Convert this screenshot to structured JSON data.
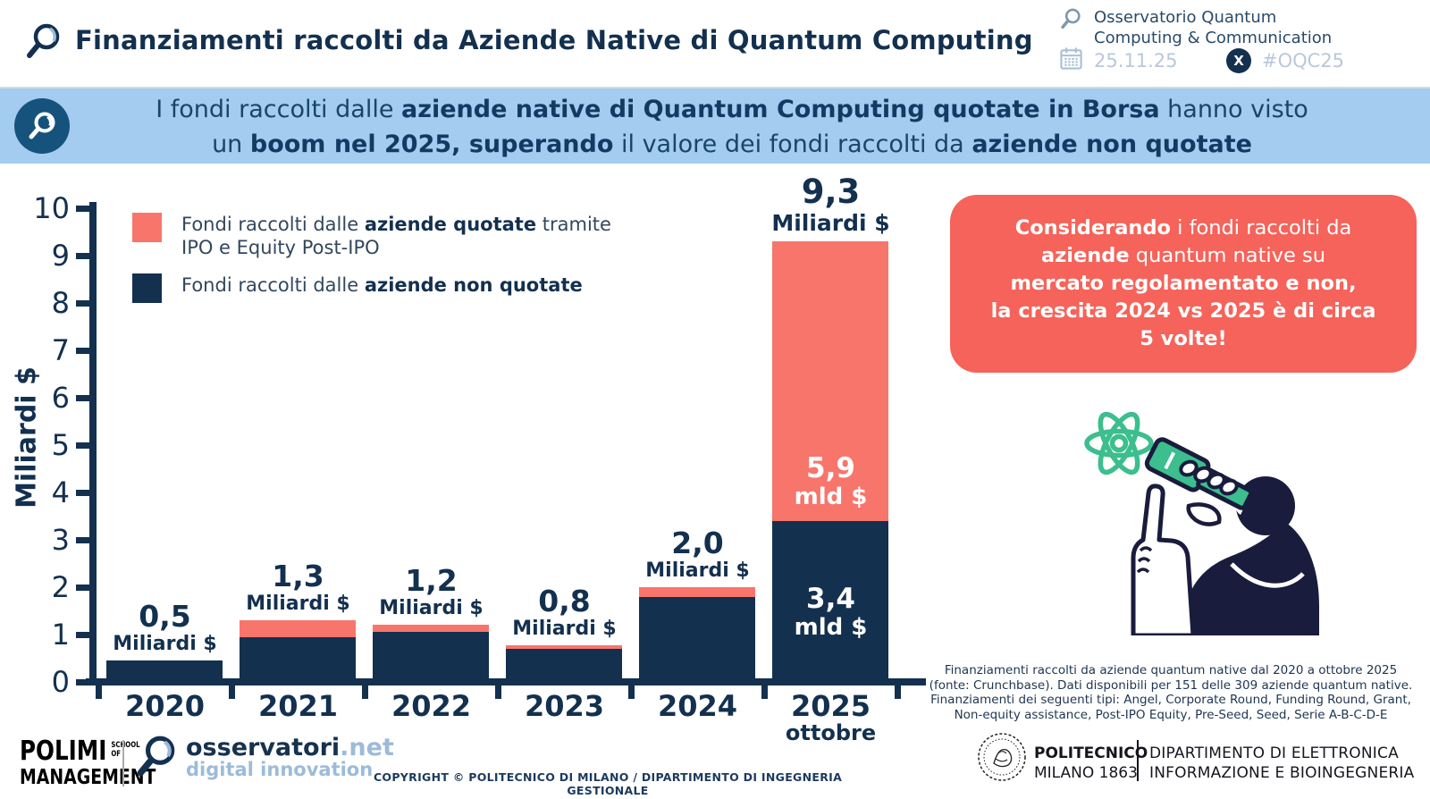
{
  "header": {
    "title": "Finanziamenti raccolti da Aziende Native di Quantum Computing",
    "org_line1": "Osservatorio Quantum",
    "org_line2": "Computing & Communication",
    "date": "25.11.25",
    "x_logo": "X",
    "hashtag": "#OQC25"
  },
  "banner": {
    "line1": [
      [
        "I fondi raccolti dalle ",
        0
      ],
      [
        "aziende native di Quantum Computing quotate in Borsa",
        1
      ],
      [
        " hanno visto",
        0
      ]
    ],
    "line2": [
      [
        "un ",
        0
      ],
      [
        "boom nel 2025, superando",
        1
      ],
      [
        " il valore dei fondi raccolti da ",
        0
      ],
      [
        "aziende non quotate",
        1
      ]
    ]
  },
  "legend": {
    "quotate": [
      [
        "Fondi raccolti dalle ",
        0
      ],
      [
        "aziende quotate",
        1
      ],
      [
        " tramite\nIPO e Equity Post-IPO",
        0
      ]
    ],
    "non_quotate": [
      [
        "Fondi raccolti dalle ",
        0
      ],
      [
        "aziende non quotate",
        1
      ]
    ]
  },
  "chart_data": {
    "type": "bar",
    "stacked": true,
    "ylabel": "Miliardi $",
    "ylim": [
      0,
      10
    ],
    "yticks": [
      0,
      1,
      2,
      3,
      4,
      5,
      6,
      7,
      8,
      9,
      10
    ],
    "grid": false,
    "legend_position": "top-left",
    "categories": [
      "2020",
      "2021",
      "2022",
      "2023",
      "2024",
      "2025"
    ],
    "x_sub_labels": {
      "2025": "ottobre"
    },
    "series": [
      {
        "name": "Fondi raccolti dalle aziende quotate tramite IPO e Equity Post-IPO",
        "color": "#F8756C",
        "values": [
          0,
          0.35,
          0.15,
          0.07,
          0.2,
          5.9
        ]
      },
      {
        "name": "Fondi raccolti dalle aziende non quotate",
        "color": "#13304F",
        "values": [
          0.45,
          0.95,
          1.05,
          0.7,
          1.8,
          3.4
        ]
      }
    ],
    "totals_values": [
      0.5,
      1.3,
      1.2,
      0.8,
      2.0,
      9.3
    ],
    "totals_labels": [
      "0,5",
      "1,3",
      "1,2",
      "0,8",
      "2,0",
      "9,3"
    ],
    "totals_unit": "Miliardi $",
    "label_large": [
      false,
      false,
      false,
      false,
      false,
      true
    ],
    "inside_labels": [
      {
        "category": "2025",
        "segment": "quotate",
        "lines": [
          "5,9",
          "mld $"
        ]
      },
      {
        "category": "2025",
        "segment": "non_quotate",
        "lines": [
          "3,4",
          "mld $"
        ]
      }
    ]
  },
  "callout": {
    "lines": [
      [
        [
          "Considerando",
          1
        ],
        [
          " i fondi raccolti da",
          0
        ]
      ],
      [
        [
          "aziende",
          1
        ],
        [
          " quantum native su",
          0
        ]
      ],
      [
        [
          "mercato regolamentato e non,",
          1
        ]
      ],
      [
        [
          "la crescita 2024 vs 2025 è di circa",
          1
        ]
      ],
      [
        [
          "5 volte!",
          1
        ]
      ]
    ]
  },
  "footnote": {
    "lines": [
      "Finanziamenti raccolti da aziende quantum native dal 2020 a ottobre 2025",
      "(fonte: Crunchbase). Dati disponibili per 151 delle 309 aziende quantum native.",
      "Finanziamenti dei seguenti tipi: Angel, Corporate Round, Funding Round, Grant,",
      "Non-equity assistance, Post-IPO Equity, Pre-Seed, Seed, Serie A-B-C-D-E"
    ]
  },
  "footer": {
    "polimi": {
      "name": "POLIMI",
      "school": "SCHOOL OF",
      "management": "MANAGEMENT"
    },
    "osservatori": {
      "name": "osservatori",
      "net": ".net",
      "tagline": "digital innovation"
    },
    "copyright": "COPYRIGHT © POLITECNICO DI MILANO / DIPARTIMENTO DI INGEGNERIA GESTIONALE",
    "politecnico": {
      "name": "POLITECNICO",
      "sub": "MILANO 1863",
      "dept_line1": "DIPARTIMENTO DI ELETTRONICA",
      "dept_line2": "INFORMAZIONE E BIOINGEGNERIA"
    }
  },
  "colors": {
    "navy": "#13304F",
    "salmon_bar": "#F8756C",
    "callout_red": "#F5635A",
    "banner_bg": "#A4CBF0",
    "banner_circle": "#16537C",
    "muted_blue": "#B9C8DA",
    "green_accent": "#3CBE8E"
  }
}
